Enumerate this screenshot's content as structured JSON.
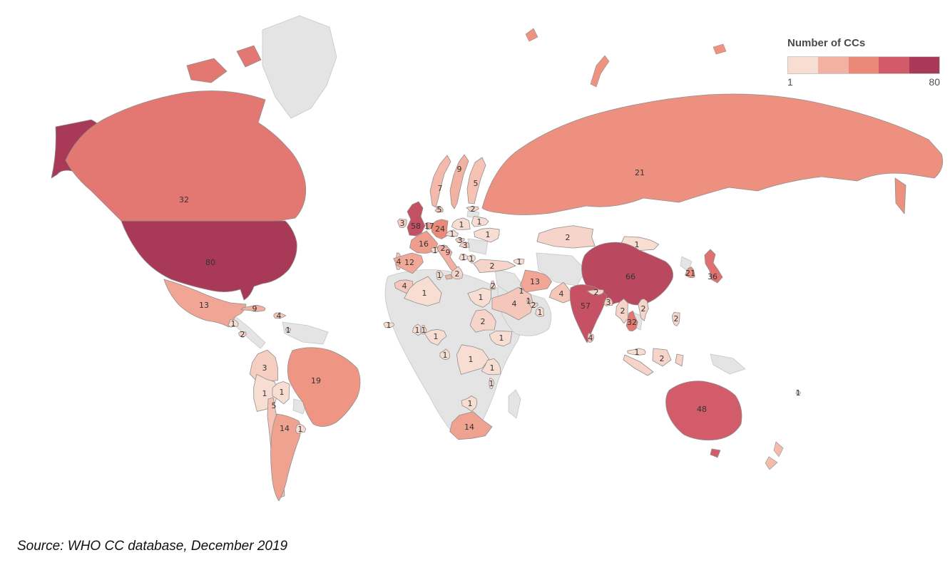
{
  "legend": {
    "title": "Number of CCs",
    "min_label": "1",
    "max_label": "80",
    "colors": [
      "#f8ddd3",
      "#f3b2a1",
      "#ec8877",
      "#d25b69",
      "#a93a57"
    ]
  },
  "source_note": "Source: WHO CC database, December 2019",
  "map": {
    "background": "#ffffff",
    "no_data_color": "#e4e4e4",
    "no_data_border": "#c6c6c6",
    "country_border": "#8f8f8f",
    "island_fill": "#ef9380",
    "light_fill": "#f5bcab",
    "label_color": "#333333"
  },
  "chart_data": {
    "type": "choropleth_map",
    "title": "Number of CCs",
    "unit": "WHO Collaborating Centres per country",
    "value_range": [
      1,
      80
    ],
    "legend_position": "top-right",
    "regions": [
      {
        "name": "United States",
        "value": 80
      },
      {
        "name": "Canada",
        "value": 32
      },
      {
        "name": "Mexico",
        "value": 13
      },
      {
        "name": "Guatemala",
        "value": 1
      },
      {
        "name": "El Salvador",
        "value": 2
      },
      {
        "name": "Cuba",
        "value": 9
      },
      {
        "name": "Dominican Republic",
        "value": 4
      },
      {
        "name": "Trinidad and Tobago",
        "value": 1
      },
      {
        "name": "Colombia",
        "value": 3
      },
      {
        "name": "Peru",
        "value": 1
      },
      {
        "name": "Bolivia",
        "value": 1
      },
      {
        "name": "Chile",
        "value": 5
      },
      {
        "name": "Brazil",
        "value": 19
      },
      {
        "name": "Argentina",
        "value": 14
      },
      {
        "name": "Uruguay",
        "value": 1
      },
      {
        "name": "Ireland",
        "value": 3
      },
      {
        "name": "United Kingdom",
        "value": 58
      },
      {
        "name": "Portugal",
        "value": 4
      },
      {
        "name": "Spain",
        "value": 12
      },
      {
        "name": "France",
        "value": 16
      },
      {
        "name": "Netherlands",
        "value": 17
      },
      {
        "name": "Germany",
        "value": 24
      },
      {
        "name": "Denmark",
        "value": 5
      },
      {
        "name": "Norway",
        "value": 7
      },
      {
        "name": "Sweden",
        "value": 9
      },
      {
        "name": "Finland",
        "value": 5
      },
      {
        "name": "Latvia",
        "value": 2
      },
      {
        "name": "Poland",
        "value": 1
      },
      {
        "name": "Belarus",
        "value": 1
      },
      {
        "name": "Ukraine",
        "value": 1
      },
      {
        "name": "Czechia",
        "value": 1
      },
      {
        "name": "Switzerland",
        "value": 1
      },
      {
        "name": "Austria",
        "value": 2
      },
      {
        "name": "Italy",
        "value": 9
      },
      {
        "name": "Slovakia",
        "value": 3
      },
      {
        "name": "Hungary",
        "value": 3
      },
      {
        "name": "Croatia",
        "value": 1
      },
      {
        "name": "Serbia",
        "value": 1
      },
      {
        "name": "Greece",
        "value": 2
      },
      {
        "name": "Turkey",
        "value": 2
      },
      {
        "name": "Georgia",
        "value": 1
      },
      {
        "name": "Israel",
        "value": 2
      },
      {
        "name": "Kuwait",
        "value": 1
      },
      {
        "name": "Saudi Arabia",
        "value": 4
      },
      {
        "name": "Bahrain",
        "value": 1
      },
      {
        "name": "United Arab Emirates",
        "value": 2
      },
      {
        "name": "Oman",
        "value": 1
      },
      {
        "name": "Iran",
        "value": 13
      },
      {
        "name": "Morocco",
        "value": 4
      },
      {
        "name": "Algeria",
        "value": 1
      },
      {
        "name": "Tunisia",
        "value": 1
      },
      {
        "name": "Egypt",
        "value": 1
      },
      {
        "name": "Sudan",
        "value": 2
      },
      {
        "name": "Senegal",
        "value": 1
      },
      {
        "name": "Ghana",
        "value": 1
      },
      {
        "name": "Benin",
        "value": 1
      },
      {
        "name": "Nigeria",
        "value": 1
      },
      {
        "name": "Gabon",
        "value": 1
      },
      {
        "name": "Democratic Republic of the Congo",
        "value": 1
      },
      {
        "name": "Ethiopia",
        "value": 1
      },
      {
        "name": "Tanzania",
        "value": 1
      },
      {
        "name": "Malawi",
        "value": 1
      },
      {
        "name": "Botswana",
        "value": 1
      },
      {
        "name": "South Africa",
        "value": 14
      },
      {
        "name": "Russia",
        "value": 21
      },
      {
        "name": "Kazakhstan",
        "value": 2
      },
      {
        "name": "Mongolia",
        "value": 1
      },
      {
        "name": "China",
        "value": 66
      },
      {
        "name": "Pakistan",
        "value": 4
      },
      {
        "name": "India",
        "value": 57
      },
      {
        "name": "Nepal",
        "value": 2
      },
      {
        "name": "Bangladesh",
        "value": 3
      },
      {
        "name": "Sri Lanka",
        "value": 4
      },
      {
        "name": "Myanmar",
        "value": 2
      },
      {
        "name": "Thailand",
        "value": 32
      },
      {
        "name": "Vietnam",
        "value": 2
      },
      {
        "name": "Malaysia",
        "value": 1
      },
      {
        "name": "Indonesia",
        "value": 2
      },
      {
        "name": "Philippines",
        "value": 2
      },
      {
        "name": "South Korea",
        "value": 21
      },
      {
        "name": "Japan",
        "value": 36
      },
      {
        "name": "Australia",
        "value": 48
      },
      {
        "name": "Fiji",
        "value": 1
      }
    ]
  }
}
